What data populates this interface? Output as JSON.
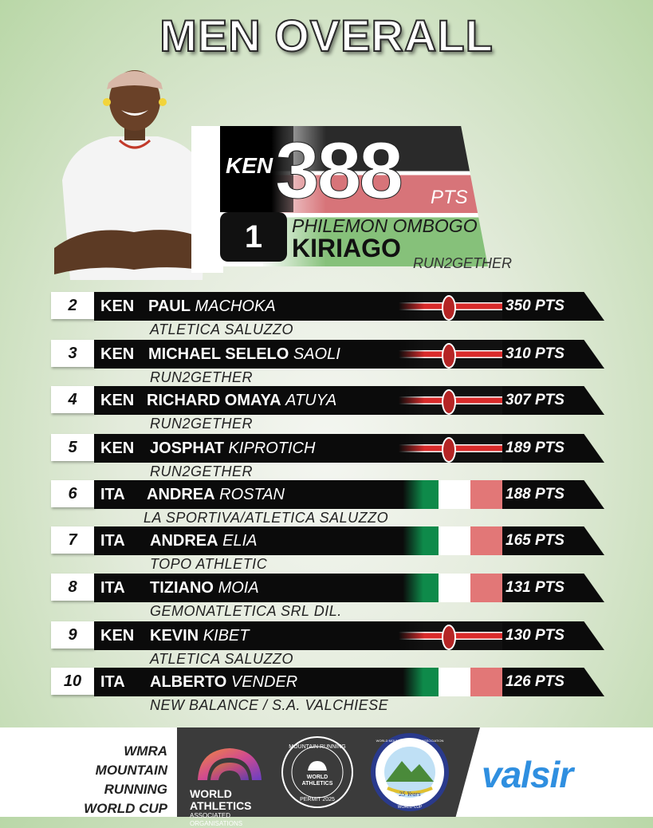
{
  "title": "MEN OVERALL",
  "winner": {
    "rank": "1",
    "nat": "KEN",
    "points": "388",
    "pts_label": "PTS",
    "first_name": "PHILEMON OMBOGO",
    "last_name": "KIRIAGO",
    "club": "RUN2GETHER",
    "flag": "kenya"
  },
  "rows": [
    {
      "rank": "2",
      "nat": "KEN",
      "first": "PAUL",
      "last": "MACHOKA",
      "club": "ATLETICA SALUZZO",
      "points": "350 PTS",
      "flag": "kenya"
    },
    {
      "rank": "3",
      "nat": "KEN",
      "first": "MICHAEL SELELO",
      "last": "SAOLI",
      "club": "RUN2GETHER",
      "points": "310 PTS",
      "flag": "kenya"
    },
    {
      "rank": "4",
      "nat": "KEN",
      "first": "RICHARD OMAYA",
      "last": "ATUYA",
      "club": "RUN2GETHER",
      "points": "307 PTS",
      "flag": "kenya"
    },
    {
      "rank": "5",
      "nat": "KEN",
      "first": "JOSPHAT",
      "last": "KIPROTICH",
      "club": "RUN2GETHER",
      "points": "189 PTS",
      "flag": "kenya"
    },
    {
      "rank": "6",
      "nat": "ITA",
      "first": "ANDREA",
      "last": "ROSTAN",
      "club": "LA SPORTIVA/ATLETICA SALUZZO",
      "points": "188 PTS",
      "flag": "italy"
    },
    {
      "rank": "7",
      "nat": "ITA",
      "first": "ANDREA",
      "last": "ELIA",
      "club": "TOPO ATHLETIC",
      "points": "165 PTS",
      "flag": "italy"
    },
    {
      "rank": "8",
      "nat": "ITA",
      "first": "TIZIANO",
      "last": "MOIA",
      "club": "GEMONATLETICA SRL DIL.",
      "points": "131 PTS",
      "flag": "italy"
    },
    {
      "rank": "9",
      "nat": "KEN",
      "first": "KEVIN",
      "last": "KIBET",
      "club": "ATLETICA SALUZZO",
      "points": "130 PTS",
      "flag": "kenya"
    },
    {
      "rank": "10",
      "nat": "ITA",
      "first": "ALBERTO",
      "last": "VENDER",
      "club": "NEW BALANCE / S.A. VALCHIESE",
      "points": "126 PTS",
      "flag": "italy"
    }
  ],
  "footer": {
    "event_lines": [
      "WMRA",
      "MOUNTAIN",
      "RUNNING",
      "WORLD CUP"
    ],
    "wa_name_1": "WORLD",
    "wa_name_2": "ATHLETICS",
    "wa_sub": "ASSOCIATED ORGANISATIONS",
    "permit_top": "MOUNTAIN RUNNING",
    "permit_logo_1": "WORLD",
    "permit_logo_2": "ATHLETICS",
    "permit_bottom": "PERMIT 2025",
    "wmra_ring": "WORLD MOUNTAIN RUNNING ASSOCIATION",
    "wmra_bottom": "WORLD CUP",
    "wmra_years": "25 Years",
    "sponsor": "valsir"
  }
}
